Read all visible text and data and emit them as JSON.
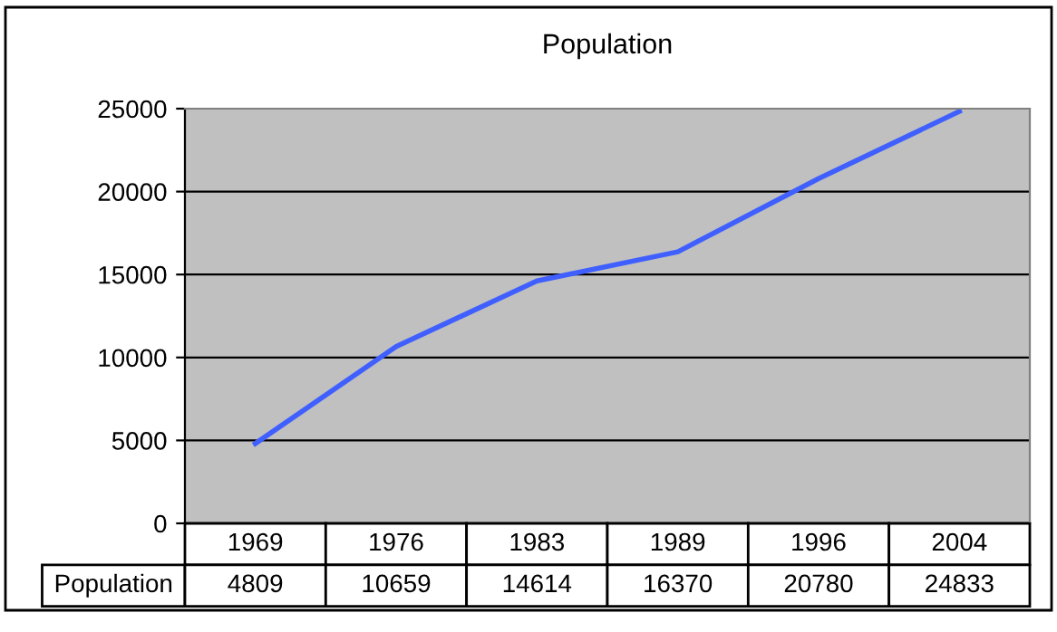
{
  "chart_data": {
    "type": "line",
    "title": "Population",
    "categories": [
      "1969",
      "1976",
      "1983",
      "1989",
      "1996",
      "2004"
    ],
    "series": [
      {
        "name": "Population",
        "color": "#3f5fff",
        "values": [
          4809,
          10659,
          14614,
          16370,
          20780,
          24833
        ]
      }
    ],
    "ylim": [
      0,
      25000
    ],
    "yticks": [
      0,
      5000,
      10000,
      15000,
      20000,
      25000
    ],
    "grid": "y",
    "data_labels": true,
    "legend": false,
    "marker": "none",
    "line_style": "solid"
  }
}
